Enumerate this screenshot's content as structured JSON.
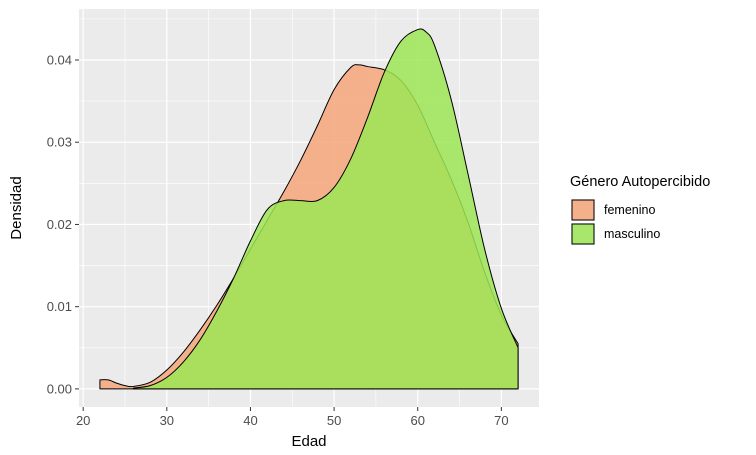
{
  "chart_data": {
    "type": "area",
    "title": "",
    "xlabel": "Edad",
    "ylabel": "Densidad",
    "xlim": [
      19.5,
      74.5
    ],
    "ylim": [
      -0.0022,
      0.0462
    ],
    "x_ticks": [
      20,
      30,
      40,
      50,
      60,
      70
    ],
    "y_ticks": [
      0.0,
      0.01,
      0.02,
      0.03,
      0.04
    ],
    "y_tick_labels": [
      "0.00",
      "0.01",
      "0.02",
      "0.03",
      "0.04"
    ],
    "grid": true,
    "legend": {
      "title": "Género Autopercibido",
      "placement": "right"
    },
    "series": [
      {
        "name": "femenino",
        "color": "#F4A67A",
        "x": [
          22,
          23,
          24,
          25,
          26,
          28,
          30,
          32,
          34,
          36,
          38,
          40,
          42,
          44,
          46,
          48,
          50,
          52,
          53,
          54,
          56,
          58,
          60,
          62,
          64,
          66,
          68,
          70,
          72
        ],
        "y": [
          0.0011,
          0.0011,
          0.0007,
          0.0004,
          0.0003,
          0.0008,
          0.0023,
          0.0045,
          0.0072,
          0.0102,
          0.0135,
          0.017,
          0.0205,
          0.024,
          0.0278,
          0.032,
          0.0364,
          0.0391,
          0.0394,
          0.0392,
          0.0388,
          0.0375,
          0.0345,
          0.03,
          0.0255,
          0.0203,
          0.0142,
          0.009,
          0.0055
        ]
      },
      {
        "name": "masculino",
        "color": "#9CE655",
        "x": [
          26,
          28,
          30,
          32,
          34,
          36,
          38,
          40,
          42,
          44,
          46,
          48,
          50,
          52,
          54,
          56,
          58,
          60,
          61,
          62,
          64,
          66,
          68,
          70,
          72
        ],
        "y": [
          0.0001,
          0.0004,
          0.0014,
          0.0033,
          0.006,
          0.0095,
          0.0135,
          0.018,
          0.0218,
          0.0229,
          0.0229,
          0.0229,
          0.0245,
          0.028,
          0.033,
          0.0385,
          0.0423,
          0.0437,
          0.0434,
          0.0418,
          0.0352,
          0.0262,
          0.017,
          0.0098,
          0.005
        ]
      }
    ]
  }
}
